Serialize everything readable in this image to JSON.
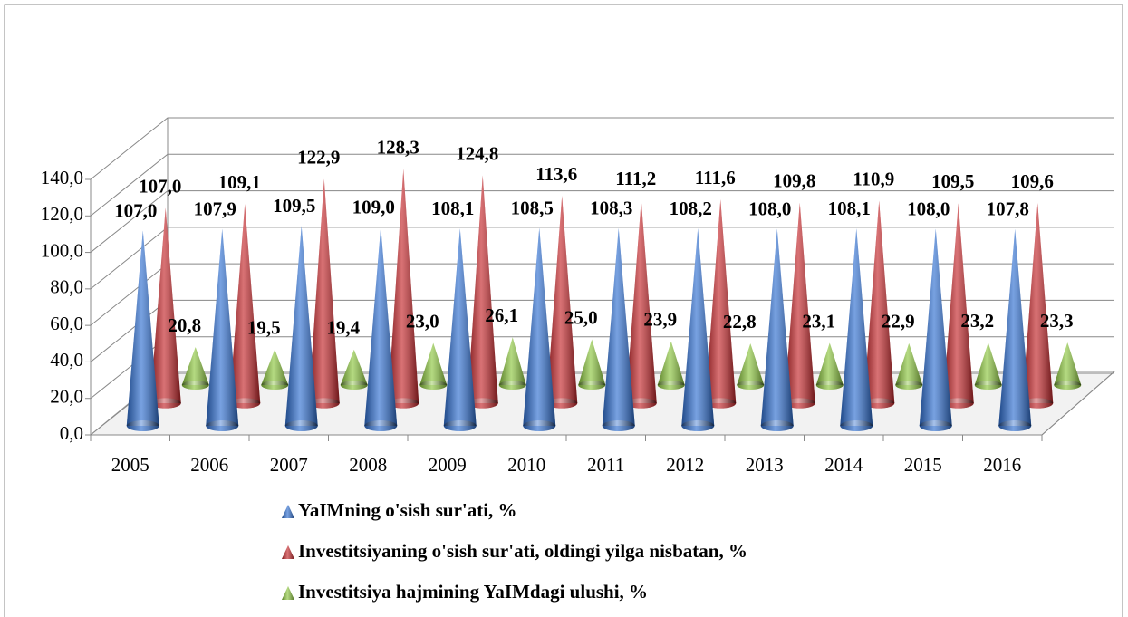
{
  "chart_data": {
    "type": "cone3d",
    "categories": [
      "2005",
      "2006",
      "2007",
      "2008",
      "2009",
      "2010",
      "2011",
      "2012",
      "2013",
      "2014",
      "2015",
      "2016"
    ],
    "series": [
      {
        "name": "YaIMning o'sish sur'ati, %",
        "color": "#2f6fd1",
        "values": [
          107.0,
          107.9,
          109.5,
          109.0,
          108.1,
          108.5,
          108.3,
          108.2,
          108.0,
          108.1,
          108.0,
          107.8
        ],
        "value_labels": [
          "107,0",
          "107,9",
          "109,5",
          "109,0",
          "108,1",
          "108,5",
          "108,3",
          "108,2",
          "108,0",
          "108,1",
          "108,0",
          "107,8"
        ]
      },
      {
        "name": "Investitsiyaning o'sish sur'ati, oldingi yilga nisbatan, %",
        "color": "#c4262a",
        "values": [
          107.0,
          109.1,
          122.9,
          128.3,
          124.8,
          113.6,
          111.2,
          111.6,
          109.8,
          110.9,
          109.5,
          109.6
        ],
        "value_labels": [
          "107,0",
          "109,1",
          "122,9",
          "128,3",
          "124,8",
          "113,6",
          "111,2",
          "111,6",
          "109,8",
          "110,9",
          "109,5",
          "109,6"
        ]
      },
      {
        "name": "Investitsiya hajmining YaIMdagi ulushi, %",
        "color": "#8cc63e",
        "values": [
          20.8,
          19.5,
          19.4,
          23.0,
          26.1,
          25.0,
          23.9,
          22.8,
          23.1,
          22.9,
          23.2,
          23.3
        ],
        "value_labels": [
          "20,8",
          "19,5",
          "19,4",
          "23,0",
          "26,1",
          "25,0",
          "23,9",
          "22,8",
          "23,1",
          "22,9",
          "23,2",
          "23,3"
        ]
      }
    ],
    "ylim": [
      0,
      140
    ],
    "yticks": [
      {
        "value": 0,
        "label": "0,0"
      },
      {
        "value": 20,
        "label": "20,0"
      },
      {
        "value": 40,
        "label": "40,0"
      },
      {
        "value": 60,
        "label": "60,0"
      },
      {
        "value": 80,
        "label": "80,0"
      },
      {
        "value": 100,
        "label": "100,0"
      },
      {
        "value": 120,
        "label": "120,0"
      },
      {
        "value": 140,
        "label": "140,0"
      }
    ],
    "grid": true
  }
}
